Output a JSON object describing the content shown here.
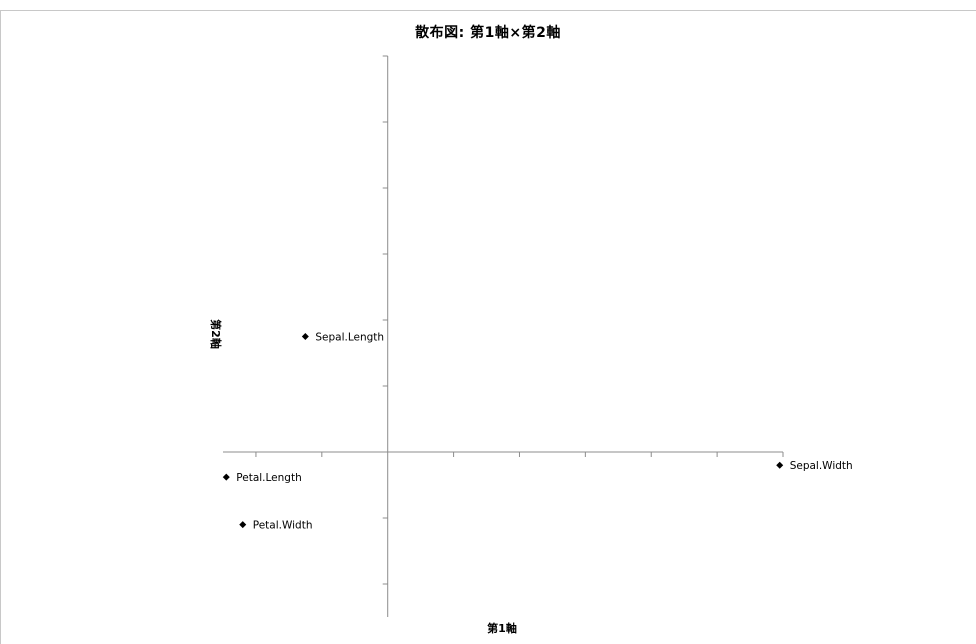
{
  "chart_data": {
    "type": "scatter",
    "title": "散布図: 第1軸×第2軸",
    "xlabel": "第1軸",
    "ylabel": "第2軸",
    "xlim": [
      -2.5,
      6
    ],
    "ylim": [
      -2.5,
      6
    ],
    "grid": false,
    "legend": "none",
    "marker_color": "#000000",
    "marker": "diamond",
    "series": [
      {
        "points": [
          {
            "label": "Sepal.Length",
            "x": -1.25,
            "y": 1.75
          },
          {
            "label": "Sepal.Width",
            "x": 5.95,
            "y": -0.2
          },
          {
            "label": "Petal.Length",
            "x": -2.45,
            "y": -0.38
          },
          {
            "label": "Petal.Width",
            "x": -2.2,
            "y": -1.1
          }
        ]
      }
    ]
  }
}
